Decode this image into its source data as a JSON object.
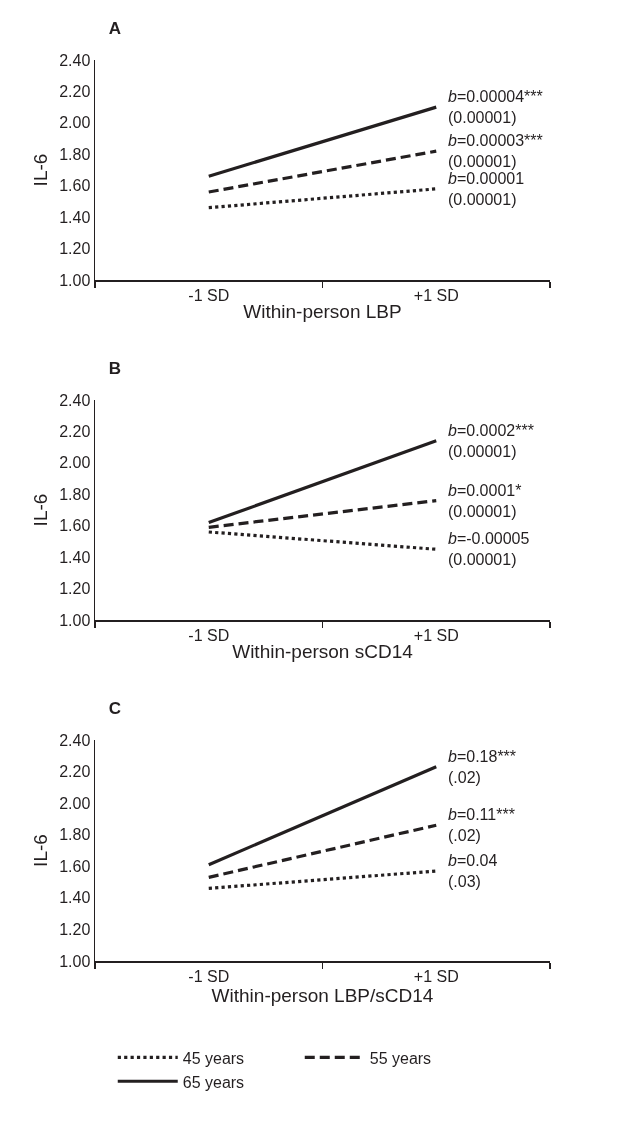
{
  "chart_data": [
    {
      "type": "line",
      "title": "A",
      "xlabel": "Within-person LBP",
      "ylabel": "IL-6",
      "categories": [
        "-1 SD",
        "+1 SD"
      ],
      "series": [
        {
          "color": "#231f20",
          "line_style": "dotted",
          "values": [
            1.46,
            1.58
          ]
        },
        {
          "color": "#231f20",
          "line_style": "dashed",
          "values": [
            1.56,
            1.82
          ]
        },
        {
          "color": "#231f20",
          "line_style": "solid",
          "values": [
            1.66,
            2.1
          ]
        }
      ],
      "ylim": [
        1.0,
        2.4
      ],
      "yticks": [
        {
          "value": 1.0,
          "label": "1.00"
        },
        {
          "value": 1.2,
          "label": "1.20"
        },
        {
          "value": 1.4,
          "label": "1.40"
        },
        {
          "value": 1.6,
          "label": "1.60"
        },
        {
          "value": 1.8,
          "label": "1.80"
        },
        {
          "value": 2.0,
          "label": "2.00"
        },
        {
          "value": 2.2,
          "label": "2.20"
        },
        {
          "value": 2.4,
          "label": "2.40"
        }
      ],
      "annotations": [
        {
          "text": "b=0.00004***\n(0.00001)",
          "x": "+1 SD",
          "y": 2.1
        },
        {
          "text": "b=0.00003***\n(0.00001)",
          "x": "+1 SD",
          "y": 1.82
        },
        {
          "text": "b=0.00001\n(0.00001)",
          "x": "+1 SD",
          "y": 1.58
        }
      ],
      "grid": false,
      "legend": false,
      "marker": "none"
    },
    {
      "type": "line",
      "title": "B",
      "xlabel": "Within-person sCD14",
      "ylabel": "IL-6",
      "categories": [
        "-1 SD",
        "+1 SD"
      ],
      "series": [
        {
          "color": "#231f20",
          "line_style": "dotted",
          "values": [
            1.56,
            1.45
          ]
        },
        {
          "color": "#231f20",
          "line_style": "dashed",
          "values": [
            1.59,
            1.76
          ]
        },
        {
          "color": "#231f20",
          "line_style": "solid",
          "values": [
            1.62,
            2.14
          ]
        }
      ],
      "ylim": [
        1.0,
        2.4
      ],
      "yticks": [
        {
          "value": 1.0,
          "label": "1.00"
        },
        {
          "value": 1.2,
          "label": "1.20"
        },
        {
          "value": 1.4,
          "label": "1.40"
        },
        {
          "value": 1.6,
          "label": "1.60"
        },
        {
          "value": 1.8,
          "label": "1.80"
        },
        {
          "value": 2.0,
          "label": "2.00"
        },
        {
          "value": 2.2,
          "label": "2.20"
        },
        {
          "value": 2.4,
          "label": "2.40"
        }
      ],
      "annotations": [
        {
          "text": "b=0.0002***\n(0.00001)",
          "x": "+1 SD",
          "y": 2.14
        },
        {
          "text": "b=0.0001*\n(0.00001)",
          "x": "+1 SD",
          "y": 1.76
        },
        {
          "text": "b=-0.00005\n(0.00001)",
          "x": "+1 SD",
          "y": 1.45
        }
      ],
      "grid": false,
      "legend": false,
      "marker": "none"
    },
    {
      "type": "line",
      "title": "C",
      "xlabel": "Within-person LBP/sCD14",
      "ylabel": "IL-6",
      "categories": [
        "-1 SD",
        "+1 SD"
      ],
      "series": [
        {
          "name": "45 years",
          "color": "#231f20",
          "line_style": "dotted",
          "values": [
            1.46,
            1.57
          ]
        },
        {
          "name": "55 years",
          "color": "#231f20",
          "line_style": "dashed",
          "values": [
            1.53,
            1.86
          ]
        },
        {
          "name": "65 years",
          "color": "#231f20",
          "line_style": "solid",
          "values": [
            1.61,
            2.23
          ]
        }
      ],
      "ylim": [
        1.0,
        2.4
      ],
      "yticks": [
        {
          "value": 1.0,
          "label": "1.00"
        },
        {
          "value": 1.2,
          "label": "1.20"
        },
        {
          "value": 1.4,
          "label": "1.40"
        },
        {
          "value": 1.6,
          "label": "1.60"
        },
        {
          "value": 1.8,
          "label": "1.80"
        },
        {
          "value": 2.0,
          "label": "2.00"
        },
        {
          "value": 2.2,
          "label": "2.20"
        },
        {
          "value": 2.4,
          "label": "2.40"
        }
      ],
      "annotations": [
        {
          "text": "b=0.18***\n(.02)",
          "x": "+1 SD",
          "y": 2.23
        },
        {
          "text": "b=0.11***\n(.02)",
          "x": "+1 SD",
          "y": 1.86
        },
        {
          "text": "b=0.04\n(.03)",
          "x": "+1 SD",
          "y": 1.57
        }
      ],
      "grid": false,
      "legend": "bottom",
      "marker": "none"
    }
  ]
}
